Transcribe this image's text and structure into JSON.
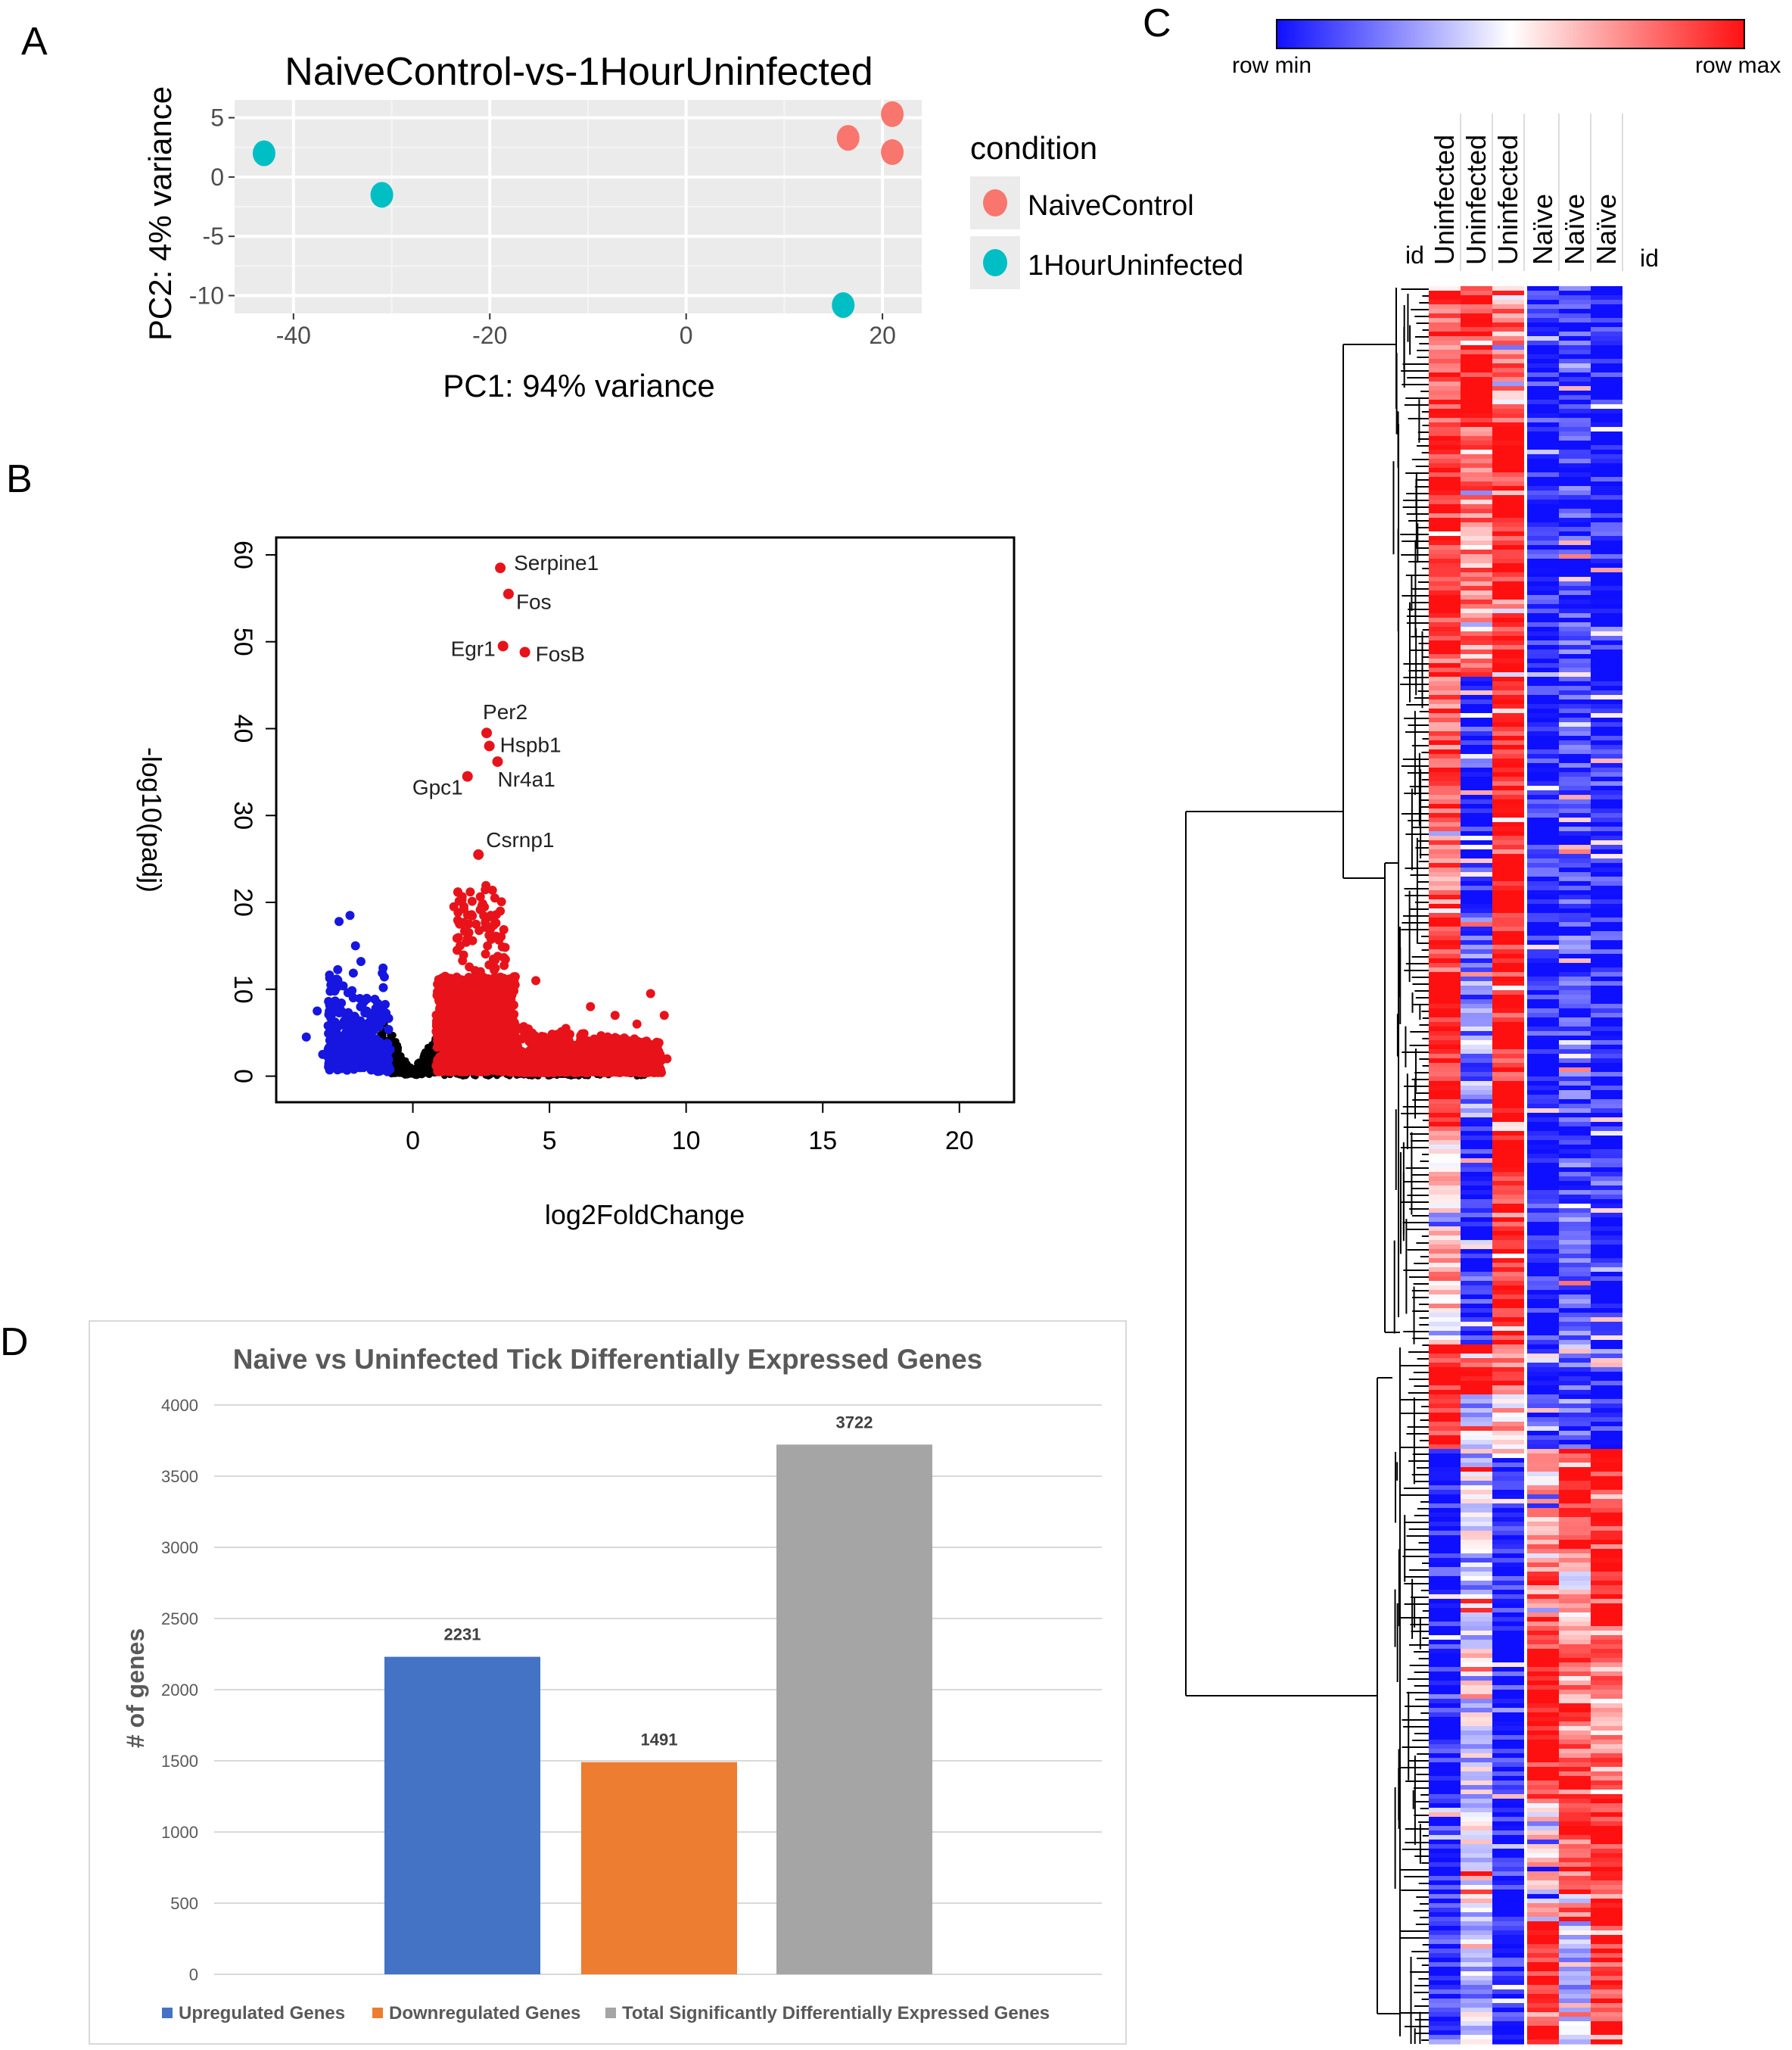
{
  "panel_labels": {
    "a": "A",
    "b": "B",
    "c": "C",
    "d": "D"
  },
  "colors": {
    "naive": "#F8766D",
    "uninfected": "#00BFC4",
    "volcano_up": "#E8131A",
    "volcano_down": "#1616E0",
    "volcano_ns": "#000000",
    "heat_low": "#0F0FFF",
    "heat_mid": "#FFFFFF",
    "heat_high": "#FF1010",
    "bar_up": "#4472C4",
    "bar_down": "#ED7D31",
    "bar_total": "#A5A5A5"
  },
  "chart_data": [
    {
      "id": "pca",
      "type": "scatter",
      "title": "NaiveControl-vs-1HourUninfected",
      "xlabel": "PC1: 94% variance",
      "ylabel": "PC2: 4% variance",
      "xlim": [
        -46,
        24
      ],
      "ylim": [
        -11.5,
        6.5
      ],
      "xticks": [
        -40,
        -20,
        0,
        20
      ],
      "yticks": [
        5,
        0,
        -5,
        -10
      ],
      "legend_title": "condition",
      "series": [
        {
          "name": "NaiveControl",
          "points": [
            [
              16.5,
              3.3
            ],
            [
              21,
              5.3
            ],
            [
              21,
              2.1
            ]
          ]
        },
        {
          "name": "1HourUninfected",
          "points": [
            [
              -43,
              2.0
            ],
            [
              -31,
              -1.5
            ],
            [
              16,
              -10.8
            ]
          ]
        }
      ]
    },
    {
      "id": "volcano",
      "type": "scatter",
      "xlabel": "log2FoldChange",
      "ylabel": "-log10(padj)",
      "xlim": [
        -5,
        22
      ],
      "ylim": [
        -3,
        62
      ],
      "xticks": [
        0,
        5,
        10,
        15,
        20
      ],
      "yticks": [
        0,
        10,
        20,
        30,
        40,
        50,
        60
      ],
      "labeled_points": [
        {
          "gene": "Serpine1",
          "x": 3.2,
          "y": 58.5
        },
        {
          "gene": "Fos",
          "x": 3.5,
          "y": 55.5
        },
        {
          "gene": "Egr1",
          "x": 3.3,
          "y": 49.5
        },
        {
          "gene": "FosB",
          "x": 4.1,
          "y": 48.8
        },
        {
          "gene": "Per2",
          "x": 2.7,
          "y": 39.5
        },
        {
          "gene": "Hspb1",
          "x": 2.8,
          "y": 38.0
        },
        {
          "gene": "Nr4a1",
          "x": 3.1,
          "y": 36.2
        },
        {
          "gene": "Gpc1",
          "x": 2.0,
          "y": 34.5
        },
        {
          "gene": "Csrnp1",
          "x": 2.4,
          "y": 25.5
        }
      ],
      "groups": [
        {
          "name": "upregulated",
          "x_range": [
            0.8,
            9.6
          ]
        },
        {
          "name": "downregulated",
          "x_range": [
            -4,
            -0.8
          ]
        },
        {
          "name": "not significant",
          "x_range": [
            -1.2,
            8.5
          ]
        }
      ]
    },
    {
      "id": "heatmap",
      "type": "heatmap",
      "legend_min": "row min",
      "legend_max": "row max",
      "row_axis_label": "id",
      "column_axis_label": "id",
      "columns": [
        "Uninfected",
        "Uninfected",
        "Uninfected",
        "Naïve",
        "Naïve",
        "Naïve"
      ],
      "blocks": [
        {
          "frac": [
            0.0,
            0.08
          ],
          "values": [
            0.75,
            1.0,
            0.55,
            -1,
            -0.9,
            -1
          ]
        },
        {
          "frac": [
            0.08,
            0.22
          ],
          "values": [
            1.0,
            0.45,
            1.0,
            -1,
            -0.85,
            -1
          ]
        },
        {
          "frac": [
            0.22,
            0.35
          ],
          "values": [
            0.65,
            -0.95,
            1.0,
            -1,
            -0.85,
            -1
          ]
        },
        {
          "frac": [
            0.35,
            0.48
          ],
          "values": [
            1.0,
            -0.55,
            1.0,
            -1,
            -0.8,
            -1
          ]
        },
        {
          "frac": [
            0.48,
            0.6
          ],
          "values": [
            0.3,
            -1.0,
            1.0,
            -1,
            -0.75,
            -1
          ]
        },
        {
          "frac": [
            0.6,
            0.63
          ],
          "values": [
            1.0,
            1.0,
            0.7,
            -1,
            -0.6,
            -1
          ]
        },
        {
          "frac": [
            0.63,
            0.66
          ],
          "values": [
            1.0,
            -0.4,
            0.2,
            -1,
            -0.8,
            -1
          ]
        },
        {
          "frac": [
            0.66,
            0.72
          ],
          "values": [
            -1,
            -0.2,
            -1,
            0.3,
            1.0,
            1.0
          ]
        },
        {
          "frac": [
            0.72,
            0.76
          ],
          "values": [
            -1,
            -0.4,
            -1,
            0.6,
            0.2,
            1.0
          ]
        },
        {
          "frac": [
            0.76,
            0.86
          ],
          "values": [
            -1,
            -0.2,
            -1,
            1.0,
            0.6,
            0.5
          ]
        },
        {
          "frac": [
            0.86,
            0.93
          ],
          "values": [
            -1,
            -0.1,
            -1,
            0.1,
            0.75,
            1.0
          ]
        },
        {
          "frac": [
            0.93,
            1.0
          ],
          "values": [
            -1,
            -0.3,
            -1,
            1.0,
            -0.2,
            0.95
          ]
        }
      ]
    },
    {
      "id": "bars",
      "type": "bar",
      "title": "Naive vs Uninfected Tick Differentially Expressed Genes",
      "ylabel": "# of genes",
      "ylim": [
        0,
        4000
      ],
      "yticks": [
        0,
        500,
        1000,
        1500,
        2000,
        2500,
        3000,
        3500,
        4000
      ],
      "categories": [
        "Upregulated Genes",
        "Downregulated Genes",
        "Total Significantly Differentially Expressed Genes"
      ],
      "values": [
        2231,
        1491,
        3722
      ]
    }
  ]
}
